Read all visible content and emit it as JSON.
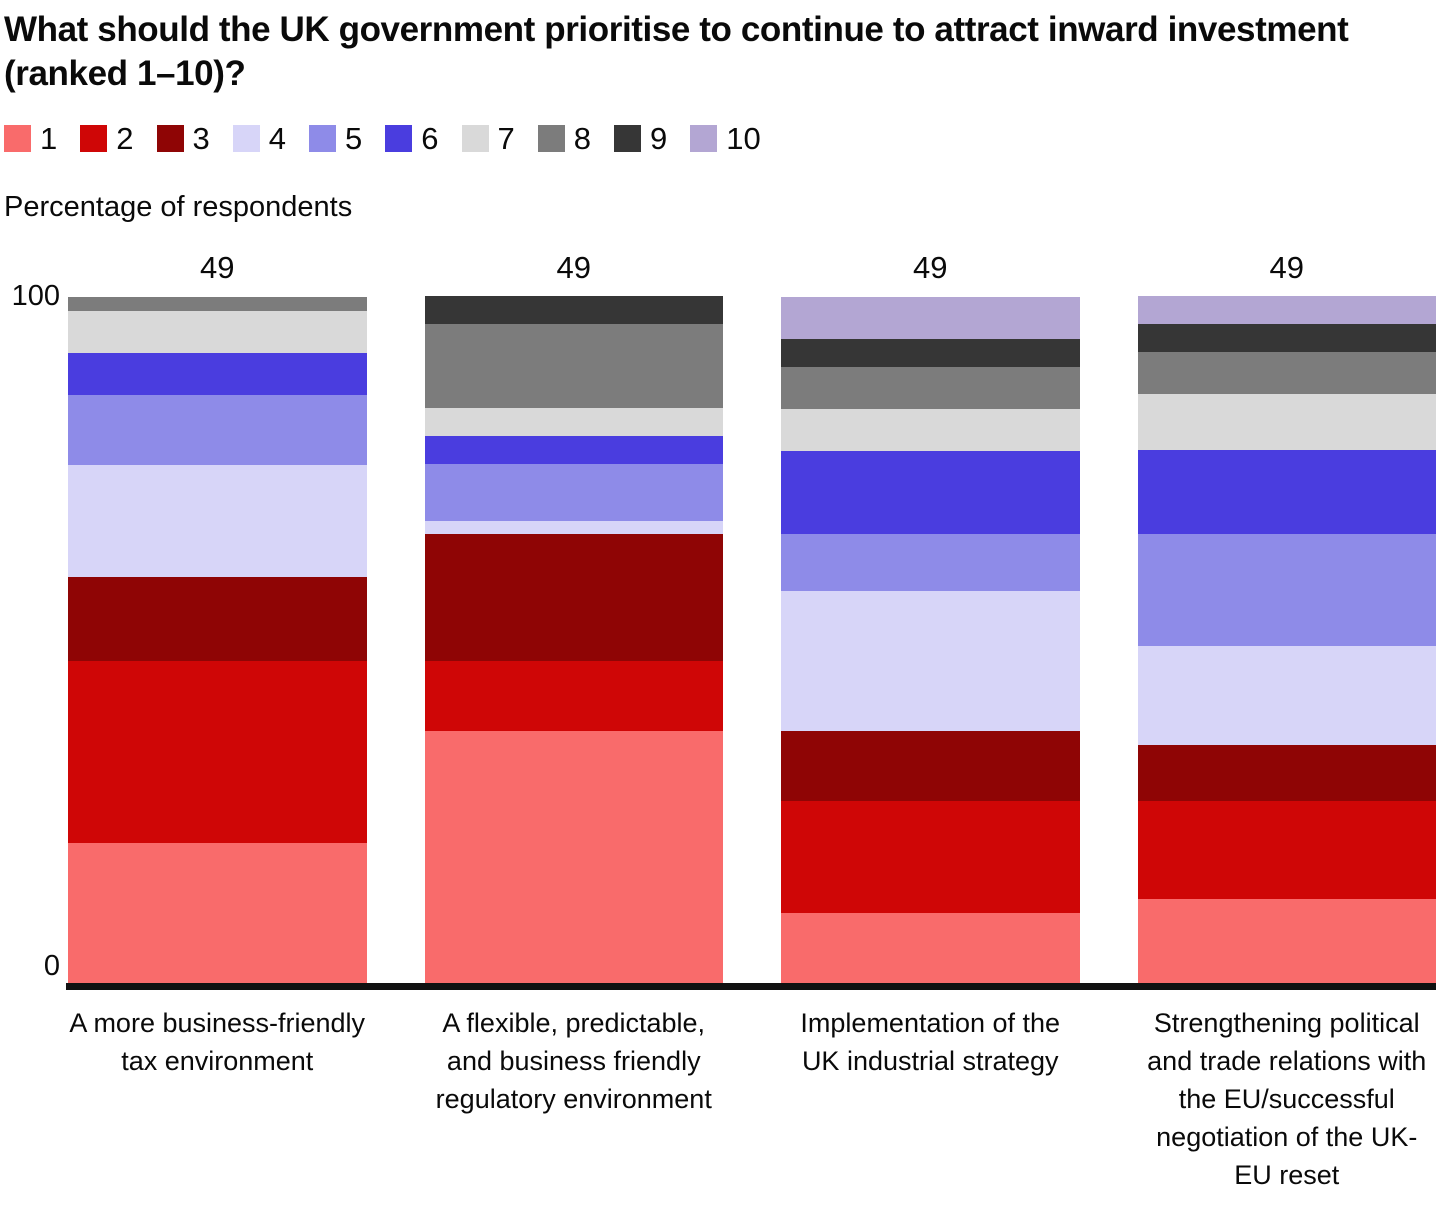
{
  "chart_data": {
    "type": "bar",
    "stacked": true,
    "title": "What should the UK government prioritise to continue to attract inward investment (ranked 1–10)?",
    "ylabel": "Percentage of respondents",
    "ylim": [
      0,
      100
    ],
    "yticks": [
      "100",
      "0"
    ],
    "grid": false,
    "legend_position": "top",
    "bar_counts": [
      "49",
      "49",
      "49",
      "49"
    ],
    "categories": [
      "A more business-friendly tax environment",
      "A flexible, predictable, and business friendly regulatory environment",
      "Implementation of the UK industrial strategy",
      "Strengthening political and trade relations with the EU/successful negotiation of the UK-EU reset"
    ],
    "series": [
      {
        "name": "1",
        "color": "#f96b6b",
        "values": [
          20.4,
          36.7,
          10.2,
          12.2
        ]
      },
      {
        "name": "2",
        "color": "#cf0606",
        "values": [
          26.5,
          10.2,
          16.3,
          14.3
        ]
      },
      {
        "name": "3",
        "color": "#8f0505",
        "values": [
          12.2,
          18.4,
          10.2,
          8.2
        ]
      },
      {
        "name": "4",
        "color": "#d7d5f8",
        "values": [
          16.3,
          2.0,
          20.4,
          14.3
        ]
      },
      {
        "name": "5",
        "color": "#8e8be8",
        "values": [
          10.2,
          8.2,
          8.2,
          16.3
        ]
      },
      {
        "name": "6",
        "color": "#4a3ddf",
        "values": [
          6.1,
          4.1,
          12.2,
          12.2
        ]
      },
      {
        "name": "7",
        "color": "#d9d9d9",
        "values": [
          6.1,
          4.1,
          6.1,
          8.2
        ]
      },
      {
        "name": "8",
        "color": "#7c7c7c",
        "values": [
          2.0,
          12.2,
          6.1,
          6.1
        ]
      },
      {
        "name": "9",
        "color": "#363636",
        "values": [
          0,
          4.1,
          4.1,
          4.1
        ]
      },
      {
        "name": "10",
        "color": "#b3a6d3",
        "values": [
          0,
          0,
          6.1,
          4.1
        ]
      }
    ]
  }
}
